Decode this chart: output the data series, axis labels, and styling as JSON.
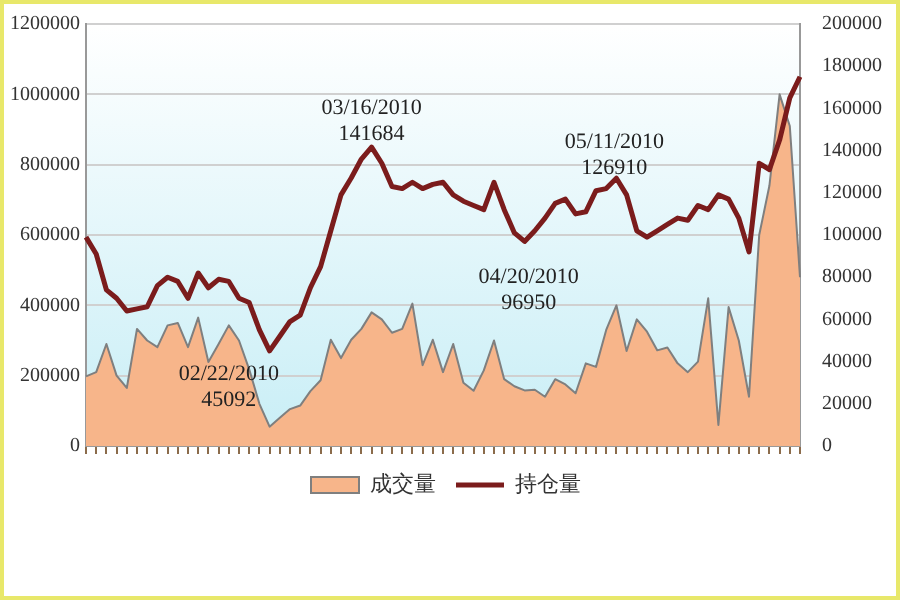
{
  "chart_data": {
    "type": "line",
    "categories": [
      null,
      null,
      null,
      null,
      null,
      null,
      null,
      null,
      null,
      null,
      null,
      null,
      null,
      null,
      null,
      null,
      null,
      null,
      null,
      null,
      null,
      null,
      null,
      null,
      null,
      null,
      null,
      null,
      null,
      null,
      null,
      null,
      null,
      null,
      null,
      null,
      null,
      null,
      null,
      null,
      null,
      null,
      null,
      null,
      null,
      null,
      null,
      null,
      null,
      null,
      null,
      null,
      null,
      null,
      null,
      null,
      null,
      null,
      null,
      null,
      null,
      null,
      null,
      null,
      null,
      null,
      null,
      null,
      null,
      null,
      null
    ],
    "series": [
      {
        "name": "成交量",
        "type": "area",
        "color": "#f7b58a",
        "values": [
          198000,
          210000,
          290000,
          200000,
          165000,
          333000,
          300000,
          281000,
          343000,
          350000,
          281000,
          365000,
          239000,
          290000,
          343000,
          300000,
          218000,
          120000,
          55000,
          80000,
          105000,
          115000,
          156000,
          187000,
          302000,
          250000,
          302000,
          333000,
          380000,
          360000,
          322000,
          333000,
          405000,
          230000,
          302000,
          210000,
          290000,
          180000,
          157000,
          215000,
          300000,
          190000,
          170000,
          158000,
          160000,
          140000,
          190000,
          175000,
          150000,
          235000,
          225000,
          330000,
          400000,
          270000,
          360000,
          325000,
          272000,
          280000,
          235000,
          210000,
          240000,
          420000,
          60000,
          395000,
          300000,
          140000,
          600000,
          740000,
          1000000,
          910000,
          480000
        ]
      },
      {
        "name": "持仓量",
        "type": "line",
        "axis": "y2",
        "color": "#7b1c1c",
        "values": [
          99000,
          91000,
          74000,
          70000,
          64000,
          65000,
          66000,
          76000,
          80000,
          78000,
          70000,
          82000,
          75000,
          79000,
          78000,
          70000,
          68000,
          55000,
          45092,
          52000,
          59000,
          62000,
          75000,
          85000,
          102000,
          119000,
          127000,
          136000,
          141684,
          134000,
          123000,
          122000,
          125000,
          122000,
          124000,
          125000,
          119000,
          116000,
          114000,
          112000,
          125000,
          112000,
          101000,
          96950,
          102000,
          108000,
          115000,
          117000,
          110000,
          111000,
          121000,
          122000,
          126910,
          119000,
          102000,
          99000,
          102000,
          105000,
          108000,
          107000,
          114000,
          112000,
          119000,
          117000,
          108000,
          92000,
          134000,
          131000,
          145000,
          165000,
          175000
        ]
      }
    ],
    "ylim": [
      0,
      1200000
    ],
    "yticks": [
      0,
      200000,
      400000,
      600000,
      800000,
      1000000,
      1200000
    ],
    "y2lim": [
      0,
      200000
    ],
    "y2ticks": [
      0,
      20000,
      40000,
      60000,
      80000,
      100000,
      120000,
      140000,
      160000,
      180000,
      200000
    ],
    "grid": "y",
    "legend": "bottom",
    "tick_labels": "y",
    "marker": "none",
    "annotations": [
      "02/22/2010\n45092",
      "03/16/2010\n141684",
      "04/20/2010\n96950",
      "05/11/2010\n126910"
    ]
  }
}
